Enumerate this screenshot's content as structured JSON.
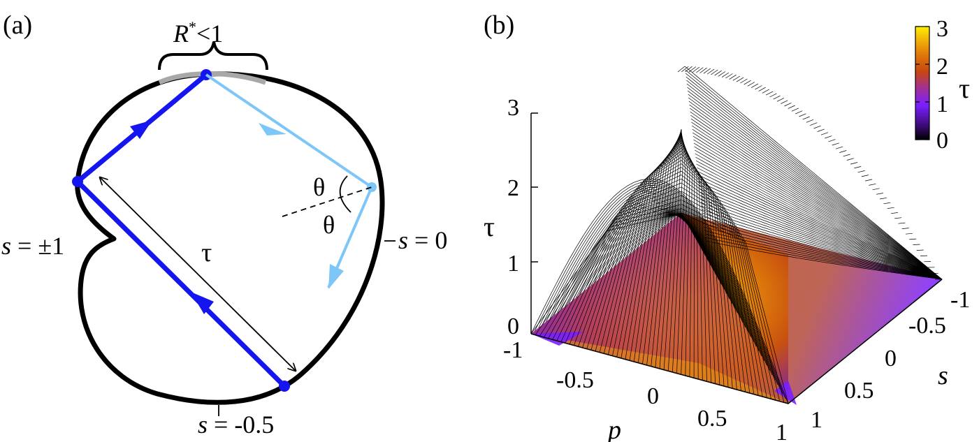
{
  "panel_a": {
    "label": "(a)",
    "brace_label_R": "R",
    "brace_label_star": "*",
    "brace_label_rest": "<1",
    "label_s_pm1": "s = ±1",
    "label_s0": "s = 0",
    "label_s_half": "s = -0.5",
    "label_tau": "τ",
    "label_theta_1": "θ",
    "label_theta_2": "θ",
    "colors": {
      "boundary": "#000000",
      "arc_highlight": "#a8a8a8",
      "traj_dark": "#1515f0",
      "traj_light": "#7dc6f7"
    }
  },
  "panel_b": {
    "label": "(b)",
    "z_label": "τ",
    "z_ticks": [
      "0",
      "1",
      "2",
      "3"
    ],
    "p_label": "p",
    "p_ticks": [
      "-1",
      "-0.5",
      "0",
      "0.5",
      "1"
    ],
    "s_label": "s",
    "s_ticks": [
      "-1",
      "-0.5",
      "0",
      "0.5",
      "1"
    ],
    "colorbar": {
      "label": "τ",
      "ticks": [
        "0",
        "1",
        "2",
        "3"
      ],
      "stops": [
        "#000000",
        "#4a0b8f",
        "#7a1fff",
        "#b23a8a",
        "#c8460f",
        "#e07a0a",
        "#f2b208",
        "#ffee00"
      ]
    }
  }
}
